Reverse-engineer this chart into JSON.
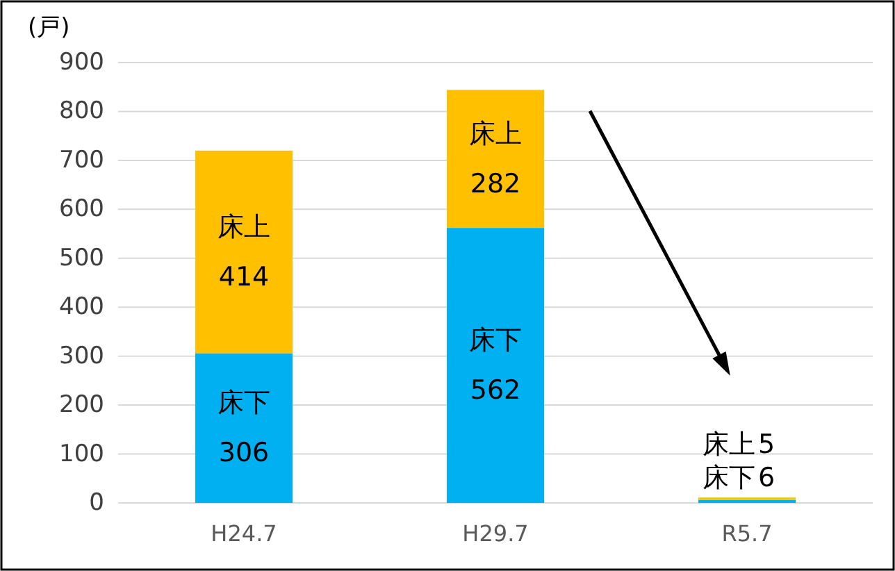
{
  "chart_data": {
    "type": "bar",
    "stacked": true,
    "ylabel": "(戸)",
    "categories": [
      "H24.7",
      "H29.7",
      "R5.7"
    ],
    "series": [
      {
        "name": "床下",
        "color": "#00b0f0",
        "values": [
          306,
          562,
          6
        ]
      },
      {
        "name": "床上",
        "color": "#ffc000",
        "values": [
          414,
          282,
          5
        ]
      }
    ],
    "ylim": [
      0,
      900
    ],
    "yticks": [
      0,
      100,
      200,
      300,
      400,
      500,
      600,
      700,
      800,
      900
    ],
    "grid": "y",
    "data_labels": true
  }
}
